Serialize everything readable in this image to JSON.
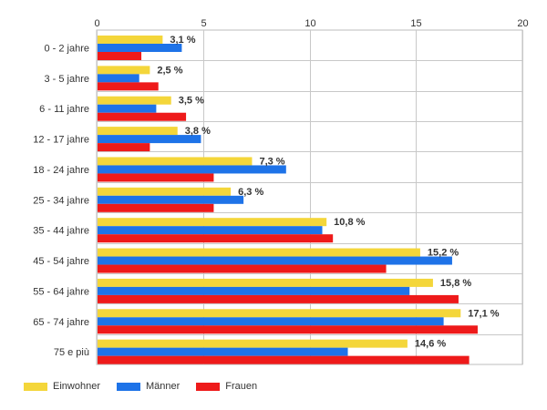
{
  "chart_data": {
    "type": "bar",
    "orientation": "horizontal",
    "title": "",
    "xlabel": "",
    "ylabel": "",
    "xlim": [
      0,
      20
    ],
    "x_ticks": [
      0,
      5,
      10,
      15,
      20
    ],
    "grid": true,
    "legend_position": "bottom-left",
    "categories": [
      "0 - 2 jahre",
      "3 - 5 jahre",
      "6 - 11 jahre",
      "12 - 17 jahre",
      "18 - 24 jahre",
      "25 - 34 jahre",
      "35 - 44 jahre",
      "45 - 54 jahre",
      "55 - 64 jahre",
      "65 - 74 jahre",
      "75 e più"
    ],
    "series": [
      {
        "name": "Einwohner",
        "color": "#f4d63a",
        "values": [
          3.1,
          2.5,
          3.5,
          3.8,
          7.3,
          6.3,
          10.8,
          15.2,
          15.8,
          17.1,
          14.6
        ]
      },
      {
        "name": "Männer",
        "color": "#1e73e8",
        "values": [
          4.0,
          2.0,
          2.8,
          4.9,
          8.9,
          6.9,
          10.6,
          16.7,
          14.7,
          16.3,
          11.8
        ]
      },
      {
        "name": "Frauen",
        "color": "#ee1a1a",
        "values": [
          2.1,
          2.9,
          4.2,
          2.5,
          5.5,
          5.5,
          11.1,
          13.6,
          17.0,
          17.9,
          17.5
        ]
      }
    ],
    "data_labels": [
      "3,1 %",
      "2,5 %",
      "3,5 %",
      "3,8 %",
      "7,3 %",
      "6,3 %",
      "10,8 %",
      "15,2 %",
      "15,8 %",
      "17,1 %",
      "14,6 %"
    ]
  }
}
